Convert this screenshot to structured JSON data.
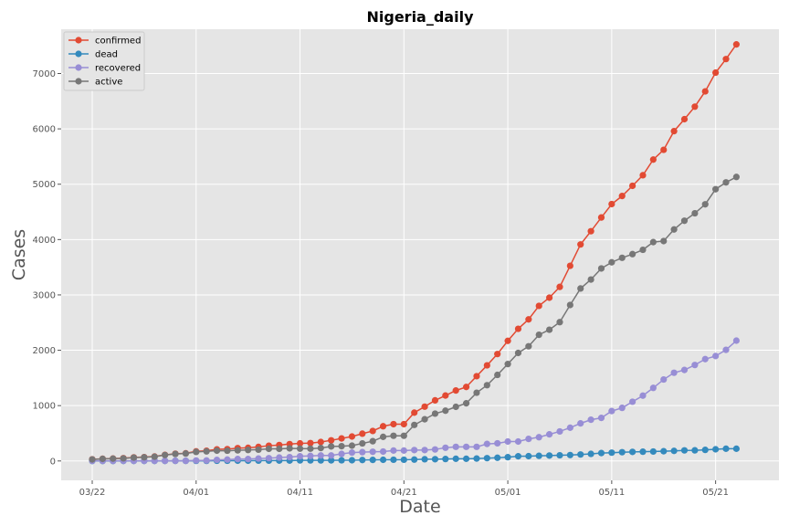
{
  "chart_data": {
    "type": "line",
    "title": "Nigeria_daily",
    "xlabel": "Date",
    "ylabel": "Cases",
    "grid": true,
    "legend_position": "top-left",
    "x_tick_labels": [
      "03/22",
      "04/01",
      "04/11",
      "04/21",
      "05/01",
      "05/11",
      "05/21"
    ],
    "y_tick_labels": [
      "0",
      "1000",
      "2000",
      "3000",
      "4000",
      "5000",
      "6000",
      "7000"
    ],
    "ylim": [
      -350,
      7800
    ],
    "x_start_date": "2020-03-22",
    "series": [
      {
        "name": "confirmed",
        "color": "#E24A33",
        "values": [
          30,
          40,
          44,
          51,
          65,
          70,
          81,
          111,
          131,
          139,
          174,
          184,
          210,
          214,
          232,
          238,
          254,
          276,
          288,
          305,
          318,
          323,
          343,
          373,
          407,
          442,
          493,
          542,
          627,
          665,
          665,
          873,
          981,
          1095,
          1182,
          1273,
          1337,
          1532,
          1728,
          1932,
          2170,
          2388,
          2558,
          2802,
          2950,
          3145,
          3526,
          3912,
          4151,
          4399,
          4641,
          4787,
          4971,
          5162,
          5445,
          5621,
          5959,
          6175,
          6401,
          6677,
          7016,
          7261,
          7526
        ]
      },
      {
        "name": "dead",
        "color": "#348ABD",
        "values": [
          0,
          0,
          0,
          1,
          1,
          1,
          1,
          1,
          2,
          2,
          2,
          2,
          4,
          4,
          5,
          5,
          6,
          6,
          7,
          7,
          10,
          10,
          10,
          11,
          12,
          13,
          17,
          19,
          21,
          22,
          22,
          25,
          31,
          32,
          35,
          40,
          40,
          44,
          51,
          58,
          68,
          85,
          87,
          93,
          98,
          103,
          107,
          117,
          128,
          143,
          150,
          158,
          164,
          167,
          171,
          176,
          182,
          191,
          192,
          200,
          211,
          221,
          221
        ]
      },
      {
        "name": "recovered",
        "color": "#988ED5",
        "values": [
          2,
          2,
          2,
          3,
          3,
          3,
          3,
          3,
          3,
          3,
          9,
          9,
          20,
          25,
          35,
          35,
          44,
          51,
          62,
          70,
          85,
          91,
          99,
          99,
          128,
          152,
          159,
          166,
          170,
          188,
          188,
          197,
          197,
          208,
          239,
          255,
          255,
          255,
          308,
          319,
          351,
          351,
          399,
          429,
          481,
          534,
          601,
          679,
          745,
          778,
          902,
          959,
          1070,
          1180,
          1320,
          1472,
          1594,
          1644,
          1734,
          1840,
          1896,
          2007,
          2174
        ]
      },
      {
        "name": "active",
        "color": "#777777",
        "values": [
          28,
          38,
          42,
          47,
          61,
          66,
          77,
          107,
          126,
          134,
          163,
          173,
          186,
          185,
          192,
          198,
          204,
          219,
          219,
          228,
          223,
          222,
          234,
          263,
          267,
          277,
          317,
          357,
          436,
          455,
          455,
          651,
          753,
          855,
          908,
          978,
          1042,
          1233,
          1369,
          1555,
          1751,
          1952,
          2072,
          2280,
          2371,
          2508,
          2818,
          3116,
          3278,
          3478,
          3589,
          3670,
          3737,
          3815,
          3954,
          3973,
          4183,
          4340,
          4475,
          4637,
          4909,
          5033,
          5131
        ]
      }
    ]
  }
}
